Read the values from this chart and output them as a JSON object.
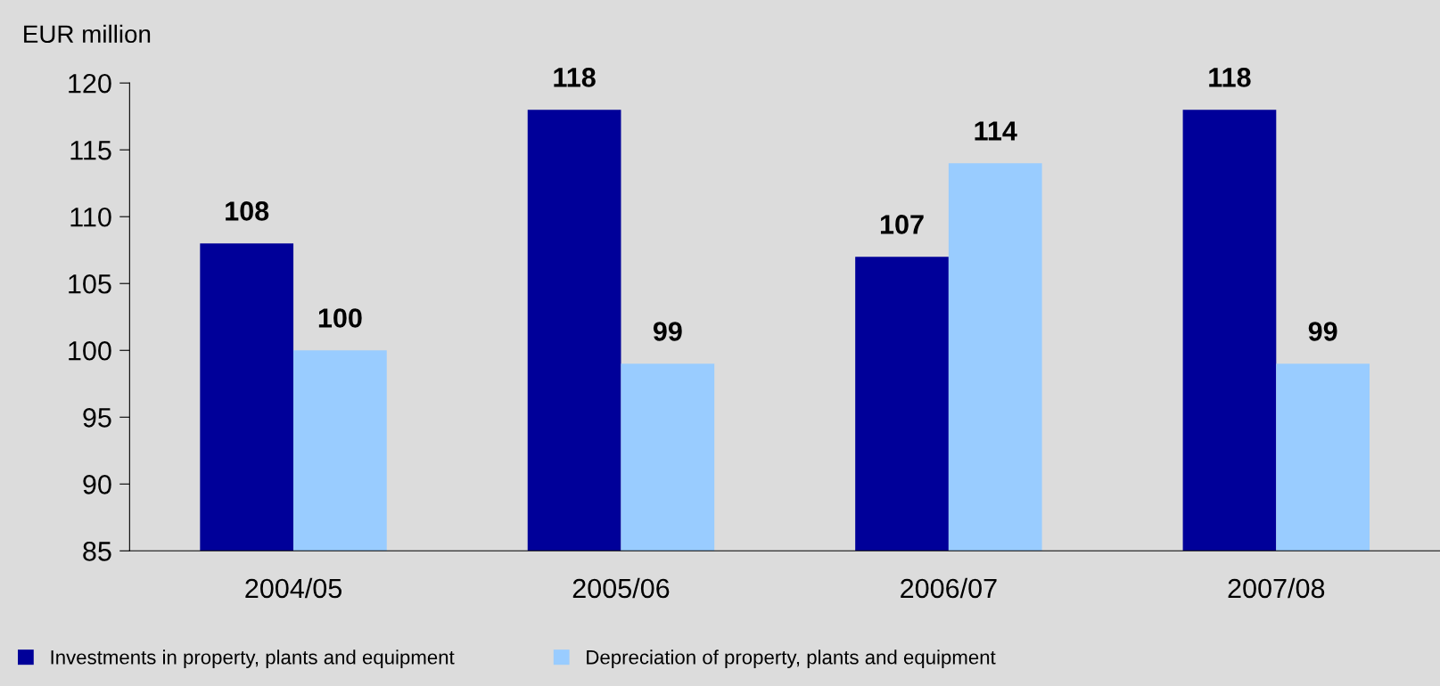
{
  "chart_data": {
    "type": "bar",
    "ylabel": "EUR million",
    "categories": [
      "2004/05",
      "2005/06",
      "2006/07",
      "2007/08"
    ],
    "series": [
      {
        "name": "Investments in property, plants and equipment",
        "color": "#000099",
        "values": [
          108,
          118,
          107,
          118
        ]
      },
      {
        "name": "Depreciation of property, plants and equipment",
        "color": "#99ccff",
        "values": [
          100,
          99,
          114,
          99
        ]
      }
    ],
    "ylim": [
      85,
      120
    ],
    "yticks": [
      85,
      90,
      95,
      100,
      105,
      110,
      115,
      120
    ],
    "data_labels": true,
    "grid": false,
    "legend": "bottom left"
  }
}
